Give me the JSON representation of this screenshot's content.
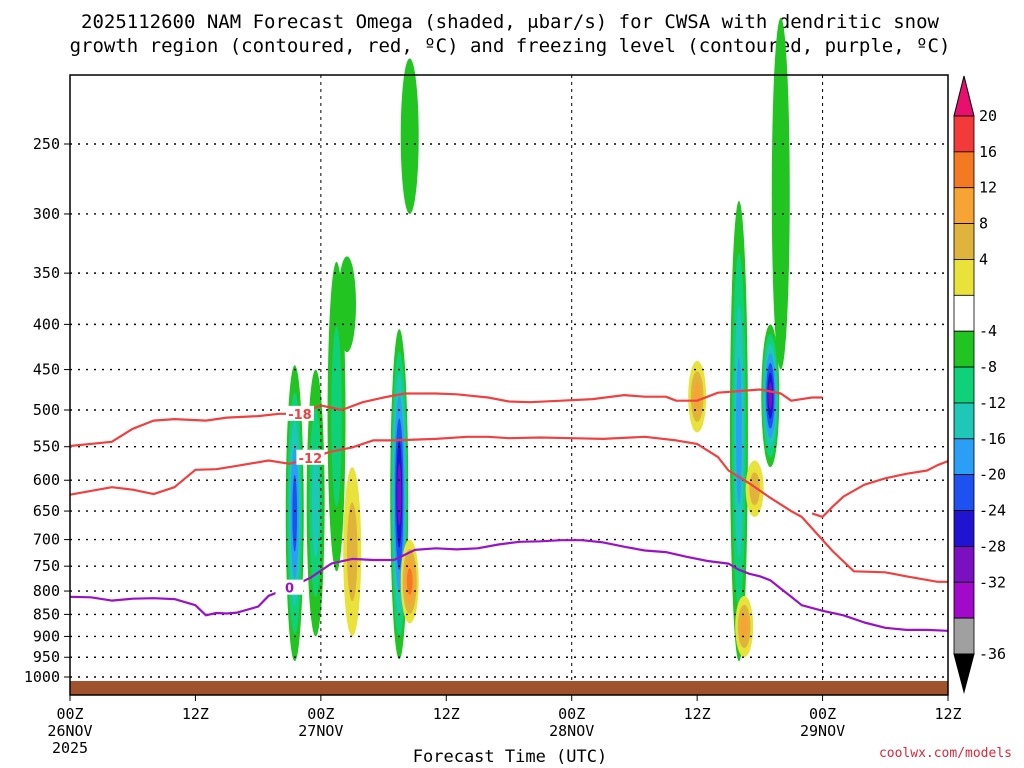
{
  "chart_data": {
    "type": "time-height contour",
    "title_line1": "2025112600 NAM Forecast Omega (shaded, μbar/s) for CWSA with dendritic snow",
    "title_line2": "growth region (contoured, red, ºC) and freezing level (contoured, purple, ºC)",
    "xlabel": "Forecast Time (UTC)",
    "credit": "coolwx.com/models",
    "xlim_hours": [
      0,
      84
    ],
    "pressure_ticks": [
      "250",
      "300",
      "350",
      "400",
      "450",
      "500",
      "550",
      "600",
      "650",
      "700",
      "750",
      "800",
      "850",
      "900",
      "950",
      "1000"
    ],
    "x_ticks": [
      {
        "hour": 0,
        "line1": "00Z",
        "line2": "26NOV",
        "line3": "2025"
      },
      {
        "hour": 12,
        "line1": "12Z",
        "line2": "",
        "line3": ""
      },
      {
        "hour": 24,
        "line1": "00Z",
        "line2": "27NOV",
        "line3": ""
      },
      {
        "hour": 36,
        "line1": "12Z",
        "line2": "",
        "line3": ""
      },
      {
        "hour": 48,
        "line1": "00Z",
        "line2": "28NOV",
        "line3": ""
      },
      {
        "hour": 60,
        "line1": "12Z",
        "line2": "",
        "line3": ""
      },
      {
        "hour": 72,
        "line1": "00Z",
        "line2": "29NOV",
        "line3": ""
      },
      {
        "hour": 84,
        "line1": "12Z",
        "line2": "",
        "line3": ""
      }
    ],
    "colorbar": {
      "labels": [
        "20",
        "16",
        "12",
        "8",
        "4",
        "-4",
        "-8",
        "-12",
        "-16",
        "-20",
        "-24",
        "-28",
        "-32",
        "-36"
      ],
      "colors": [
        "#e8106e",
        "#f23a3a",
        "#f37a22",
        "#f6a534",
        "#e0b43c",
        "#e8e23a",
        "#ffffff",
        "#22c422",
        "#0fd17a",
        "#1fc7b6",
        "#2a9ff5",
        "#1e52f0",
        "#2014d0",
        "#7a10c0",
        "#a00ac8",
        "#a0a0a0",
        "#000000"
      ]
    },
    "contours": [
      {
        "name": "-18 C isotherm",
        "color": "#f04040",
        "label": "-18",
        "points": [
          [
            0,
            549
          ],
          [
            4,
            543
          ],
          [
            6,
            525
          ],
          [
            8,
            514
          ],
          [
            10,
            512
          ],
          [
            13,
            514
          ],
          [
            15,
            510
          ],
          [
            18,
            508
          ],
          [
            20,
            505
          ],
          [
            22,
            505
          ],
          [
            24,
            494
          ],
          [
            26,
            500
          ],
          [
            28,
            490
          ],
          [
            30,
            484
          ],
          [
            32,
            479
          ],
          [
            35,
            479
          ],
          [
            37,
            480
          ],
          [
            40,
            484
          ],
          [
            42,
            489
          ],
          [
            44,
            490
          ],
          [
            47,
            488
          ],
          [
            50,
            486
          ],
          [
            53,
            481
          ],
          [
            55,
            483
          ],
          [
            57,
            483
          ],
          [
            58,
            488
          ],
          [
            60,
            488
          ],
          [
            62,
            478
          ],
          [
            64,
            476
          ],
          [
            66,
            474
          ],
          [
            68,
            479
          ],
          [
            69,
            488
          ],
          [
            71,
            484
          ],
          [
            72,
            484
          ]
        ]
      },
      {
        "name": "-12 C isotherm",
        "color": "#f04040",
        "label": "-12",
        "points": [
          [
            0,
            623
          ],
          [
            4,
            611
          ],
          [
            6,
            615
          ],
          [
            8,
            622
          ],
          [
            10,
            611
          ],
          [
            12,
            584
          ],
          [
            14,
            583
          ],
          [
            16,
            578
          ],
          [
            19,
            570
          ],
          [
            21,
            575
          ],
          [
            23,
            566
          ],
          [
            25,
            557
          ],
          [
            27,
            551
          ],
          [
            29,
            541
          ],
          [
            31,
            541
          ],
          [
            33,
            540
          ],
          [
            35,
            539
          ],
          [
            38,
            536
          ],
          [
            40,
            536
          ],
          [
            42,
            538
          ],
          [
            45,
            537
          ],
          [
            48,
            538
          ],
          [
            51,
            539
          ],
          [
            55,
            536
          ],
          [
            58,
            541
          ],
          [
            60,
            546
          ],
          [
            62,
            565
          ],
          [
            63,
            585
          ],
          [
            65,
            605
          ],
          [
            67,
            628
          ],
          [
            69,
            650
          ],
          [
            70,
            660
          ],
          [
            71,
            680
          ],
          [
            73,
            722
          ],
          [
            75,
            760
          ],
          [
            78,
            762
          ],
          [
            80,
            770
          ],
          [
            83,
            781
          ],
          [
            84,
            781
          ]
        ]
      },
      {
        "name": "-12 C isotherm (right)",
        "color": "#f04040",
        "label": "",
        "points": [
          [
            71,
            654
          ],
          [
            72,
            660
          ],
          [
            73,
            642
          ],
          [
            74,
            626
          ],
          [
            76,
            607
          ],
          [
            78,
            597
          ],
          [
            80,
            590
          ],
          [
            82,
            585
          ],
          [
            83,
            577
          ],
          [
            84,
            571
          ]
        ]
      },
      {
        "name": "0 C freezing level",
        "color": "#9a12c8",
        "label": "0",
        "points": [
          [
            0,
            812
          ],
          [
            2,
            813
          ],
          [
            4,
            820
          ],
          [
            6,
            816
          ],
          [
            8,
            815
          ],
          [
            10,
            817
          ],
          [
            12,
            830
          ],
          [
            13,
            852
          ],
          [
            14,
            847
          ],
          [
            15,
            848
          ],
          [
            16,
            846
          ],
          [
            18,
            833
          ],
          [
            19,
            810
          ],
          [
            21,
            793
          ],
          [
            23,
            773
          ],
          [
            25,
            745
          ],
          [
            27,
            736
          ],
          [
            29,
            738
          ],
          [
            31,
            738
          ],
          [
            33,
            719
          ],
          [
            35,
            716
          ],
          [
            37,
            718
          ],
          [
            39,
            716
          ],
          [
            41,
            709
          ],
          [
            43,
            704
          ],
          [
            45,
            703
          ],
          [
            47,
            701
          ],
          [
            49,
            701
          ],
          [
            51,
            705
          ],
          [
            53,
            713
          ],
          [
            55,
            720
          ],
          [
            57,
            723
          ],
          [
            59,
            732
          ],
          [
            61,
            740
          ],
          [
            63,
            745
          ],
          [
            64,
            757
          ],
          [
            65,
            765
          ],
          [
            66,
            770
          ],
          [
            67,
            778
          ],
          [
            68,
            795
          ],
          [
            69,
            812
          ],
          [
            70,
            830
          ],
          [
            72,
            842
          ],
          [
            74,
            852
          ],
          [
            76,
            868
          ],
          [
            78,
            880
          ],
          [
            80,
            885
          ],
          [
            82,
            885
          ],
          [
            84,
            887
          ]
        ]
      }
    ],
    "shaded_cells_omega": [
      {
        "hour": 21.5,
        "p_top": 445,
        "p_bottom": 960,
        "min": -20
      },
      {
        "hour": 23.5,
        "p_top": 450,
        "p_bottom": 900,
        "min": -12
      },
      {
        "hour": 25.5,
        "p_top": 340,
        "p_bottom": 760,
        "min": -8
      },
      {
        "hour": 26.5,
        "p_top": 335,
        "p_bottom": 430,
        "min": -4
      },
      {
        "hour": 31.5,
        "p_top": 405,
        "p_bottom": 955,
        "min": -28
      },
      {
        "hour": 32.5,
        "p_top": 200,
        "p_bottom": 300,
        "min": -4
      },
      {
        "hour": 32.5,
        "p_top": 700,
        "p_bottom": 870,
        "max": 16
      },
      {
        "hour": 27,
        "p_top": 580,
        "p_bottom": 900,
        "max": 8
      },
      {
        "hour": 60,
        "p_top": 440,
        "p_bottom": 530,
        "max": 12
      },
      {
        "hour": 64,
        "p_top": 290,
        "p_bottom": 960,
        "min": -16
      },
      {
        "hour": 67,
        "p_top": 400,
        "p_bottom": 580,
        "min": -28
      },
      {
        "hour": 68,
        "p_top": 180,
        "p_bottom": 450,
        "min": -4
      },
      {
        "hour": 65.5,
        "p_top": 570,
        "p_bottom": 660,
        "max": 8
      },
      {
        "hour": 64.5,
        "p_top": 810,
        "p_bottom": 950,
        "max": 12
      }
    ]
  }
}
